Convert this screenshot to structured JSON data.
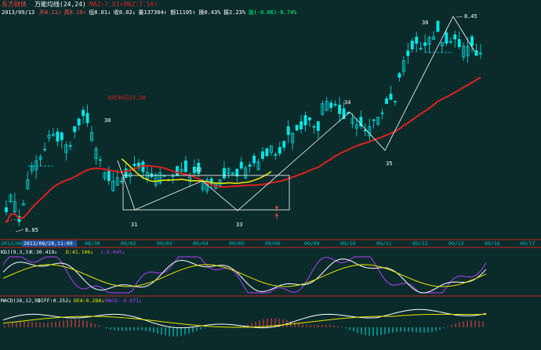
{
  "header": {
    "brand": "东方财体",
    "indicator": "万能均线(24,24)",
    "ma_a": "MA2:7.51↑",
    "ma_b": "MA2:7.16↑",
    "date": "2013/09/13",
    "fields": [
      {
        "text": "开8.11↑",
        "color": "#ff5050"
      },
      {
        "text": "高8.19↑",
        "color": "#ff5050"
      },
      {
        "text": "低8.01↓",
        "color": "#ffffff"
      },
      {
        "text": "收8.02↓",
        "color": "#ffffff"
      },
      {
        "text": "量137304↑",
        "color": "#ffffff"
      },
      {
        "text": "额11105↑",
        "color": "#ffffff"
      },
      {
        "text": "换0.43%",
        "color": "#ffffff"
      },
      {
        "text": "振2.23%",
        "color": "#ffffff"
      },
      {
        "text": "涨(-0.06)-0.74%",
        "color": "#00ff88"
      }
    ]
  },
  "colors": {
    "background": "#0b2b2b",
    "up_candle": "#00e6e6",
    "down_candle": "#00e6e6",
    "ma_long": "#e02020",
    "ma_short": "#e6e600",
    "wave": "#ffffff",
    "kdj_k": "#ffffff",
    "kdj_d": "#e6e600",
    "kdj_j": "#b040ff",
    "macd_bar_pos": "#ff4040",
    "macd_bar_neg": "#00e6e6"
  },
  "annotations": {
    "wave_labels": [
      "30",
      "31",
      "32",
      "33",
      "34",
      "35",
      "36"
    ],
    "low_price": "6.05",
    "high_price": "8.45",
    "note": "8月30日13:30"
  },
  "date_axis": {
    "labels": [
      "08/30",
      "09/02",
      "09/03",
      "09/04",
      "09/05",
      "09/06",
      "09/09",
      "09/10",
      "09/11",
      "09/12",
      "09/13",
      "09/16",
      "09/17"
    ],
    "cursor_label": "2013/08/28,11:00",
    "prefix": "2013/08/"
  },
  "kdj": {
    "label": "KDJ(9,3,3)",
    "k": "K:30.419↓",
    "d": "D:41.106↓",
    "j": "J:9.045↓"
  },
  "macd": {
    "label": "MACD(26,12,9)",
    "diff": "DIFF:0.252↓",
    "dea": "DEA:0.288↓",
    "macd": "MACD:-0.071↓"
  },
  "chart_data": {
    "type": "candlestick",
    "x": [
      "08/30",
      "09/02",
      "09/03",
      "09/04",
      "09/05",
      "09/06",
      "09/09",
      "09/10",
      "09/11",
      "09/12",
      "09/13"
    ],
    "price_low": 6.05,
    "price_high": 8.45,
    "wave_points": [
      {
        "label": "30",
        "price": 7.45
      },
      {
        "label": "31",
        "price": 6.55
      },
      {
        "label": "32",
        "price": 6.95
      },
      {
        "label": "33",
        "price": 6.55
      },
      {
        "label": "34",
        "price": 7.55
      },
      {
        "label": "35",
        "price": 7.14
      },
      {
        "label": "36",
        "price": 8.45
      }
    ]
  }
}
